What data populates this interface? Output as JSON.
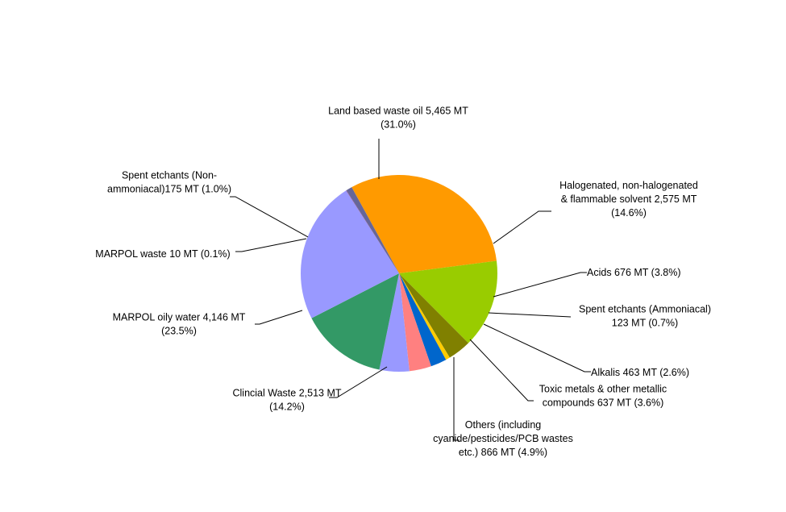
{
  "chart_data": {
    "type": "pie",
    "title": "",
    "unit": "MT",
    "slices": [
      {
        "label_lines": [
          "Land based waste oil 5,465 MT",
          "(31.0%)"
        ],
        "value": 5465,
        "percent": 31.0,
        "color": "#FF9A00"
      },
      {
        "label_lines": [
          "Halogenated, non-halogenated",
          "& flammable solvent 2,575 MT",
          "(14.6%)"
        ],
        "value": 2575,
        "percent": 14.6,
        "color": "#99CC00"
      },
      {
        "label_lines": [
          "Acids 676 MT (3.8%)"
        ],
        "value": 676,
        "percent": 3.8,
        "color": "#808000"
      },
      {
        "label_lines": [
          "Spent etchants (Ammoniacal)",
          "123 MT (0.7%)"
        ],
        "value": 123,
        "percent": 0.7,
        "color": "#FFCC00"
      },
      {
        "label_lines": [
          "Alkalis 463 MT (2.6%)"
        ],
        "value": 463,
        "percent": 2.6,
        "color": "#0066CC"
      },
      {
        "label_lines": [
          "Toxic metals & other metallic",
          "compounds 637 MT (3.6%)"
        ],
        "value": 637,
        "percent": 3.6,
        "color": "#FF8080"
      },
      {
        "label_lines": [
          "Others (including",
          "cyanide/pesticides/PCB wastes",
          "etc.) 866 MT (4.9%)"
        ],
        "value": 866,
        "percent": 4.9,
        "color": "#9999FF"
      },
      {
        "label_lines": [
          "Clincial Waste 2,513 MT",
          "(14.2%)"
        ],
        "value": 2513,
        "percent": 14.2,
        "color": "#339966"
      },
      {
        "label_lines": [
          "MARPOL oily water 4,146 MT",
          "(23.5%)"
        ],
        "value": 4146,
        "percent": 23.5,
        "color": "#9999FF"
      },
      {
        "label_lines": [
          "MARPOL waste 10 MT (0.1%)"
        ],
        "value": 10,
        "percent": 0.1,
        "color": "#993366"
      },
      {
        "label_lines": [
          "Spent etchants (Non-",
          "ammoniacal)175 MT (1.0%)"
        ],
        "value": 175,
        "percent": 1.0,
        "color": "#666699"
      }
    ]
  }
}
